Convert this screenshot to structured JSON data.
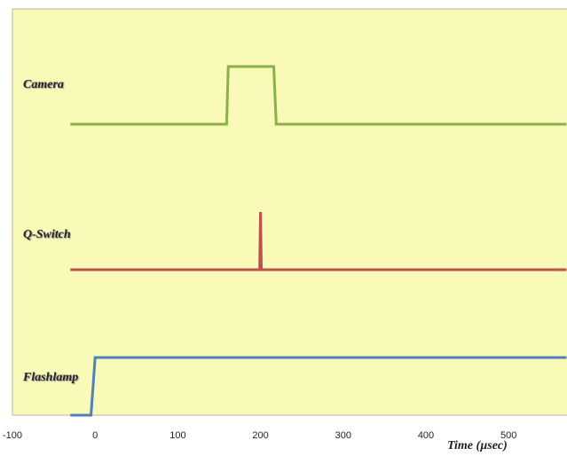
{
  "chart_data": {
    "type": "line",
    "x_label": "Time (µsec)",
    "xlim": [
      -100,
      570
    ],
    "xticks": [
      -100,
      0,
      100,
      200,
      300,
      400,
      500
    ],
    "series": [
      {
        "name": "Camera",
        "color": "#8cb04a",
        "x": [
          -30,
          159,
          161,
          216,
          219,
          570
        ],
        "values": [
          0,
          0,
          1,
          1,
          0,
          0
        ]
      },
      {
        "name": "Q-Switch",
        "color": "#c0504d",
        "x": [
          -30,
          199,
          200,
          201,
          570
        ],
        "values": [
          0,
          0,
          1,
          0,
          0
        ]
      },
      {
        "name": "Flashlamp",
        "color": "#4f81bd",
        "x": [
          -30,
          -5,
          0,
          570
        ],
        "values": [
          0,
          0,
          1,
          1
        ]
      }
    ]
  }
}
